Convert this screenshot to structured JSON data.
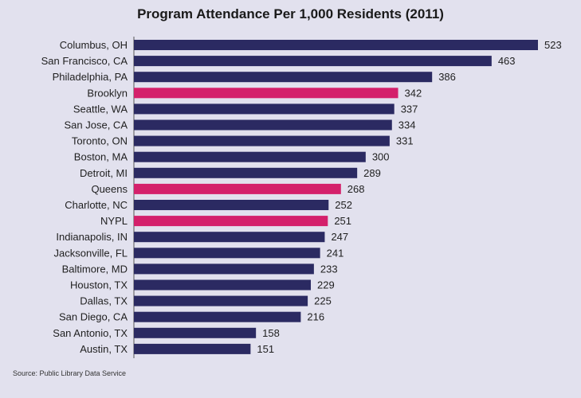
{
  "chart_data": {
    "type": "bar",
    "orientation": "horizontal",
    "title": "Program Attendance Per 1,000 Residents (2011)",
    "source": "Source: Public Library Data Service",
    "categories": [
      "Columbus, OH",
      "San Francisco, CA",
      "Philadelphia, PA",
      "Brooklyn",
      "Seattle, WA",
      "San Jose, CA",
      "Toronto, ON",
      "Boston, MA",
      "Detroit, MI",
      "Queens",
      "Charlotte, NC",
      "NYPL",
      "Indianapolis, IN",
      "Jacksonville, FL",
      "Baltimore, MD",
      "Houston, TX",
      "Dallas, TX",
      "San Diego, CA",
      "San Antonio, TX",
      "Austin, TX"
    ],
    "values": [
      523,
      463,
      386,
      342,
      337,
      334,
      331,
      300,
      289,
      268,
      252,
      251,
      247,
      241,
      233,
      229,
      225,
      216,
      158,
      151
    ],
    "highlighted": [
      "Brooklyn",
      "Queens",
      "NYPL"
    ],
    "xlim": [
      0,
      523
    ],
    "grid": false,
    "colors": {
      "default": "#2b2a62",
      "highlight": "#d4206b"
    }
  }
}
